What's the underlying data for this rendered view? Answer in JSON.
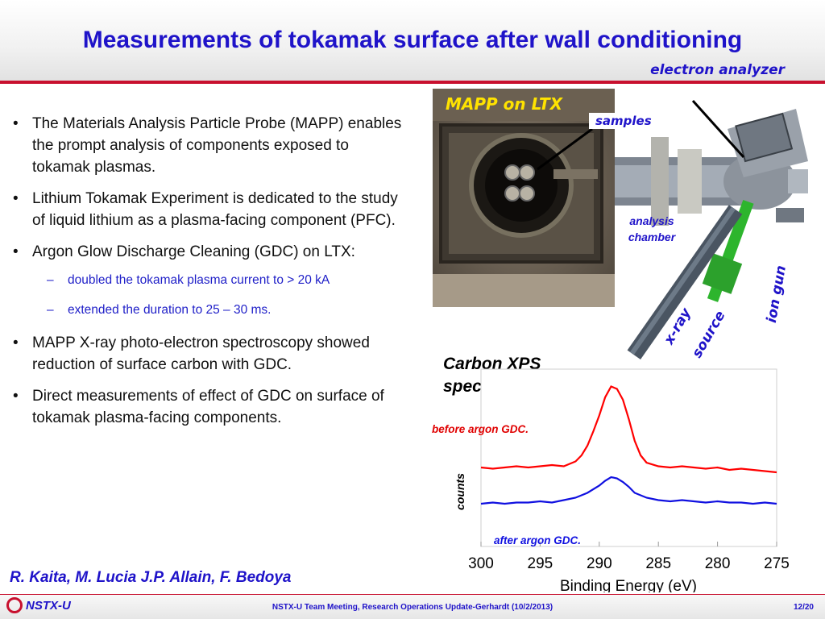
{
  "header": {
    "title": "Measurements of tokamak surface after wall conditioning",
    "subtitle": "electron analyzer"
  },
  "bullets": [
    {
      "text": "The Materials Analysis Particle Probe (MAPP) enables the prompt analysis of components exposed to tokamak plasmas."
    },
    {
      "text": "Lithium Tokamak Experiment is dedicated to the study of liquid lithium as a plasma-facing component (PFC)."
    },
    {
      "text": "Argon Glow Discharge Cleaning (GDC) on LTX:"
    },
    {
      "text": "MAPP X-ray photo-electron spectroscopy showed reduction of surface carbon with GDC."
    },
    {
      "text": "Direct measurements of effect of GDC on surface of tokamak plasma-facing components."
    }
  ],
  "sub_bullets": [
    "doubled the tokamak plasma current to > 20 kA",
    "extended the duration to 25 – 30 ms."
  ],
  "bullet_marker": "•",
  "sub_marker": "–",
  "authors": "R. Kaita, M. Lucia J.P. Allain, F. Bedoya",
  "figure_labels": {
    "mapp": "MAPP on LTX",
    "samples": "samples",
    "analysis_line1": "analysis",
    "analysis_line2": "chamber",
    "ion_gun": "ion gun",
    "xray": "x-ray",
    "source": "source"
  },
  "xps": {
    "title_line1": "Carbon XPS",
    "title_line2": "spectra"
  },
  "chart_data": {
    "type": "line",
    "xlabel": "Binding Energy (eV)",
    "ylabel": "counts",
    "xlim": [
      300,
      275
    ],
    "x_ticks": [
      "300",
      "295",
      "290",
      "285",
      "280",
      "275"
    ],
    "series": [
      {
        "name": "before argon GDC.",
        "color": "#ff0000",
        "x": [
          300,
          299,
          298,
          297,
          296,
          295,
          294,
          293,
          292,
          291.5,
          291,
          290.5,
          290,
          289.5,
          289,
          288.5,
          288,
          287.5,
          287,
          286.5,
          286,
          285,
          284,
          283,
          282,
          281,
          280,
          279,
          278,
          277,
          276,
          275
        ],
        "y": [
          0.3,
          0.29,
          0.3,
          0.31,
          0.3,
          0.31,
          0.32,
          0.31,
          0.35,
          0.4,
          0.48,
          0.6,
          0.73,
          0.88,
          0.97,
          0.95,
          0.86,
          0.7,
          0.52,
          0.4,
          0.34,
          0.31,
          0.3,
          0.31,
          0.3,
          0.29,
          0.3,
          0.28,
          0.29,
          0.28,
          0.27,
          0.26
        ]
      },
      {
        "name": "after argon GDC.",
        "color": "#1010e0",
        "x": [
          300,
          299,
          298,
          297,
          296,
          295,
          294,
          293,
          292,
          291,
          290,
          289.5,
          289,
          288.5,
          288,
          287.5,
          287,
          286,
          285,
          284,
          283,
          282,
          281,
          280,
          279,
          278,
          277,
          276,
          275
        ],
        "y": [
          0.0,
          0.01,
          0.0,
          0.01,
          0.01,
          0.02,
          0.01,
          0.03,
          0.05,
          0.09,
          0.15,
          0.19,
          0.22,
          0.21,
          0.18,
          0.14,
          0.09,
          0.05,
          0.03,
          0.02,
          0.03,
          0.02,
          0.01,
          0.02,
          0.01,
          0.01,
          0.0,
          0.01,
          0.0
        ]
      }
    ]
  },
  "footer": {
    "brand": "NSTX-U",
    "center": "NSTX-U Team Meeting, Research Operations Update-Gerhardt (10/2/2013)",
    "page": "12/20"
  },
  "colors": {
    "title_blue": "#1f13c9",
    "accent_red": "#c8102e"
  }
}
